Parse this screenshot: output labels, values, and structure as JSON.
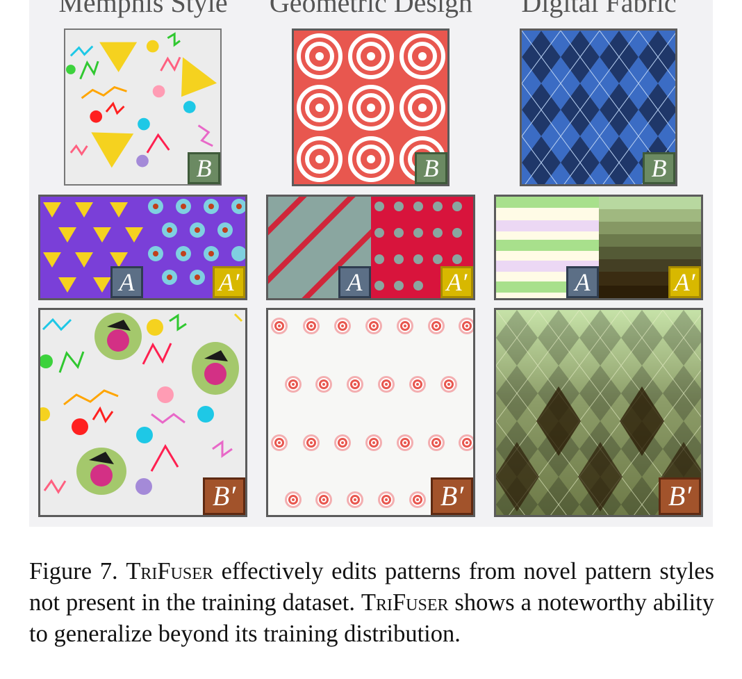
{
  "columns": [
    {
      "title": "Memphis Style",
      "badges": {
        "b": "B",
        "a": "A",
        "a_prime": "A′",
        "b_prime": "B′"
      }
    },
    {
      "title": "Geometric Design",
      "badges": {
        "b": "B",
        "a": "A",
        "a_prime": "A′",
        "b_prime": "B′"
      }
    },
    {
      "title": "Digital Fabric",
      "badges": {
        "b": "B",
        "a": "A",
        "a_prime": "A′",
        "b_prime": "B′"
      }
    }
  ],
  "caption": {
    "label": "Figure 7.",
    "name": "TriFuser",
    "part1": " effectively edits patterns from novel pattern styles not present in the training dataset. ",
    "part2": " shows a noteworthy ability to generalize beyond its training distribution."
  },
  "colors": {
    "badge_b": "#6b8a62",
    "badge_a": "#5c6f86",
    "badge_a_prime": "#d8b800",
    "badge_b_prime": "#a2532b",
    "memphis_bg": "#ececec",
    "geo_red": "#e8574f",
    "argyle_light": "#7fa6e0",
    "argyle_dark": "#1f3769",
    "panda_purple": "#7a3fd8",
    "fabric_green": "#9fd88a",
    "olive_dark": "#3a2c12"
  }
}
